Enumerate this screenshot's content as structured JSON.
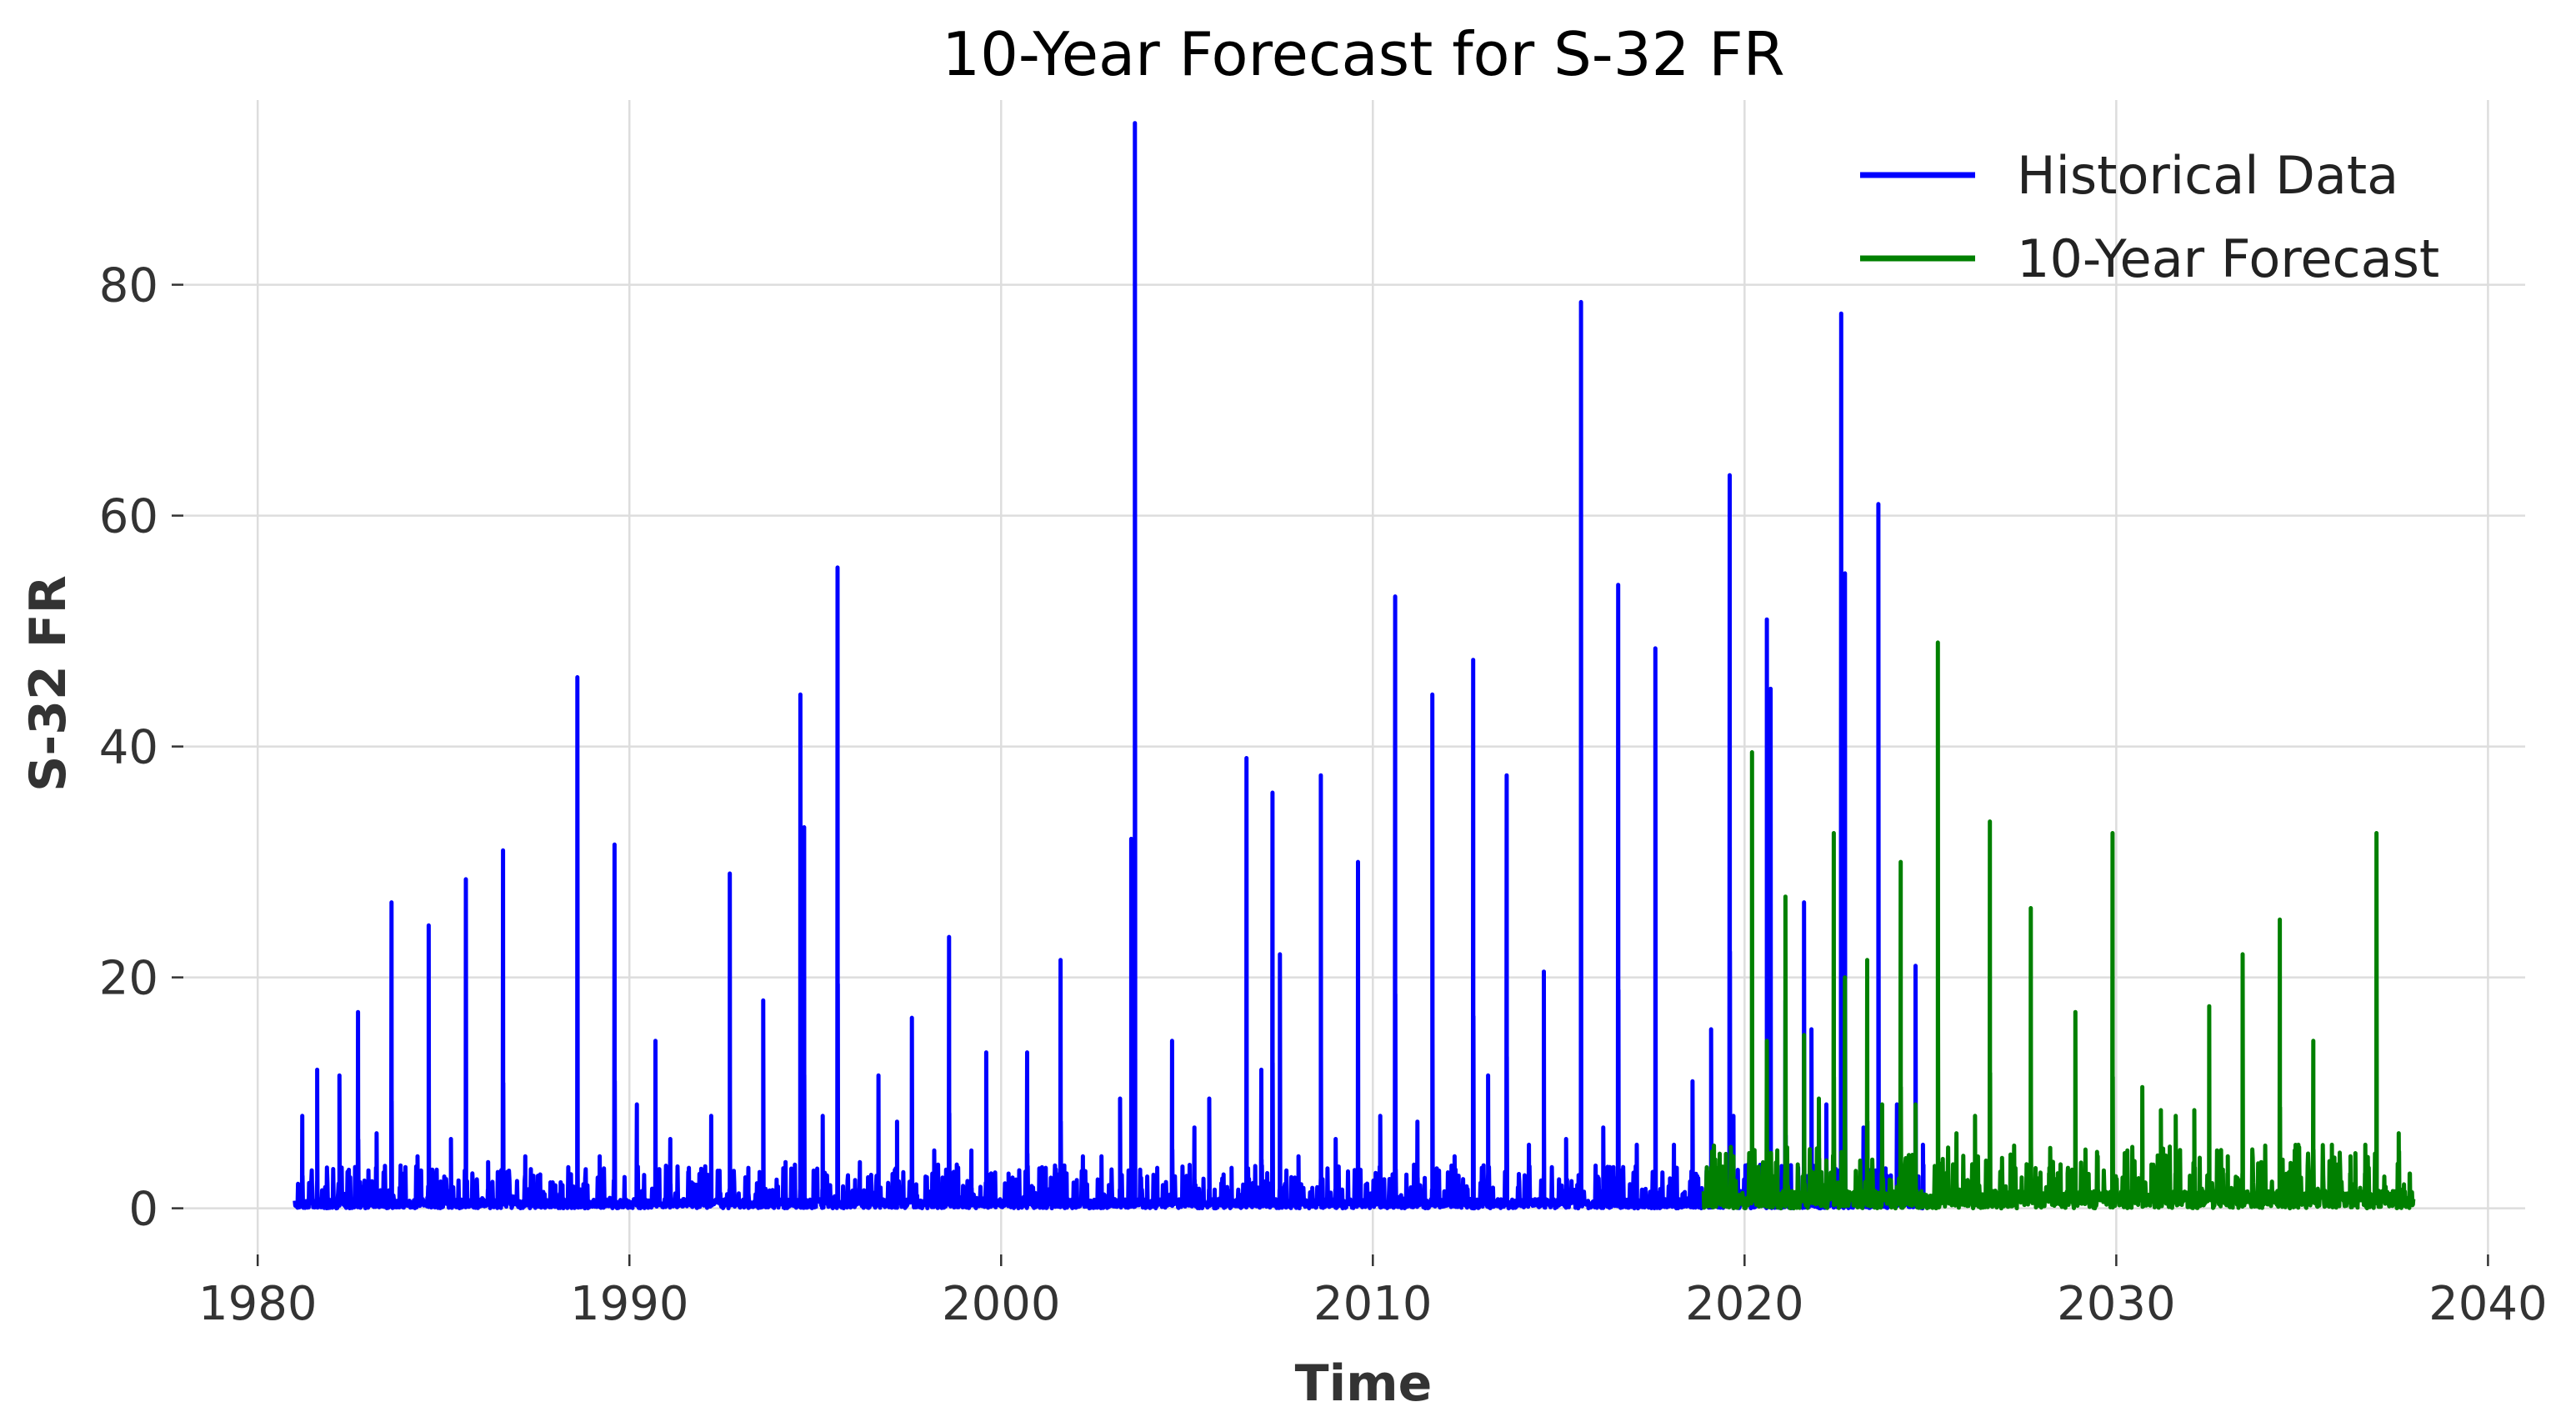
{
  "chart_data": {
    "type": "line",
    "title": "10-Year Forecast for S-32 FR",
    "xlabel": "Time",
    "ylabel": "S-32 FR",
    "xlim": [
      1978.0,
      2041.0
    ],
    "ylim": [
      -4,
      96
    ],
    "x_ticks": [
      1980,
      1990,
      2000,
      2010,
      2020,
      2030,
      2040
    ],
    "x_tick_labels": [
      "1980",
      "1990",
      "2000",
      "2010",
      "2020",
      "2030",
      "2040"
    ],
    "y_ticks": [
      0,
      20,
      40,
      60,
      80
    ],
    "y_tick_labels": [
      "0",
      "20",
      "40",
      "60",
      "80"
    ],
    "grid": true,
    "legend_position": "top-right",
    "series": [
      {
        "name": "Historical Data",
        "color": "#0000ff",
        "x_range": [
          1981.0,
          2024.9
        ],
        "baseline": 0.8,
        "peaks": [
          [
            1981.2,
            8
          ],
          [
            1981.6,
            12
          ],
          [
            1982.2,
            11.5
          ],
          [
            1982.7,
            17
          ],
          [
            1983.2,
            6.5
          ],
          [
            1983.6,
            26.5
          ],
          [
            1984.3,
            4.5
          ],
          [
            1984.6,
            24.5
          ],
          [
            1985.2,
            6
          ],
          [
            1985.6,
            28.5
          ],
          [
            1986.2,
            4
          ],
          [
            1986.6,
            31
          ],
          [
            1987.2,
            4.5
          ],
          [
            1987.6,
            2.5
          ],
          [
            1988.2,
            2
          ],
          [
            1988.6,
            46
          ],
          [
            1989.2,
            4.5
          ],
          [
            1989.6,
            31.5
          ],
          [
            1990.2,
            9
          ],
          [
            1990.7,
            14.5
          ],
          [
            1991.1,
            6
          ],
          [
            1991.6,
            3.5
          ],
          [
            1992.2,
            8
          ],
          [
            1992.7,
            29
          ],
          [
            1993.2,
            3.5
          ],
          [
            1993.6,
            18
          ],
          [
            1994.2,
            4
          ],
          [
            1994.6,
            44.5
          ],
          [
            1994.7,
            33
          ],
          [
            1995.2,
            8
          ],
          [
            1995.6,
            55.5
          ],
          [
            1996.2,
            4
          ],
          [
            1996.7,
            11.5
          ],
          [
            1997.2,
            7.5
          ],
          [
            1997.6,
            16.5
          ],
          [
            1998.2,
            5
          ],
          [
            1998.6,
            23.5
          ],
          [
            1999.2,
            5
          ],
          [
            1999.6,
            13.5
          ],
          [
            2000.2,
            3
          ],
          [
            2000.7,
            13.5
          ],
          [
            2001.2,
            3.5
          ],
          [
            2001.6,
            21.5
          ],
          [
            2002.2,
            4.5
          ],
          [
            2002.7,
            4.5
          ],
          [
            2003.2,
            9.5
          ],
          [
            2003.5,
            32
          ],
          [
            2003.6,
            94
          ],
          [
            2004.2,
            3.5
          ],
          [
            2004.6,
            14.5
          ],
          [
            2005.2,
            7
          ],
          [
            2005.6,
            9.5
          ],
          [
            2006.2,
            3.5
          ],
          [
            2006.6,
            39
          ],
          [
            2007.0,
            12
          ],
          [
            2007.3,
            36
          ],
          [
            2007.5,
            22
          ],
          [
            2008.0,
            4.5
          ],
          [
            2008.6,
            37.5
          ],
          [
            2009.0,
            6
          ],
          [
            2009.6,
            30
          ],
          [
            2010.2,
            8
          ],
          [
            2010.6,
            53
          ],
          [
            2011.2,
            7.5
          ],
          [
            2011.6,
            44.5
          ],
          [
            2012.2,
            4.5
          ],
          [
            2012.7,
            47.5
          ],
          [
            2013.1,
            11.5
          ],
          [
            2013.6,
            37.5
          ],
          [
            2014.2,
            5.5
          ],
          [
            2014.6,
            20.5
          ],
          [
            2015.2,
            6
          ],
          [
            2015.6,
            78.5
          ],
          [
            2016.2,
            7
          ],
          [
            2016.6,
            54
          ],
          [
            2017.1,
            5.5
          ],
          [
            2017.6,
            48.5
          ],
          [
            2018.1,
            5.5
          ],
          [
            2018.6,
            11
          ],
          [
            2019.1,
            15.5
          ],
          [
            2019.6,
            63.5
          ],
          [
            2019.7,
            8
          ],
          [
            2020.6,
            51
          ],
          [
            2020.7,
            45
          ],
          [
            2021.1,
            18
          ],
          [
            2021.6,
            26.5
          ],
          [
            2021.8,
            15.5
          ],
          [
            2022.2,
            9
          ],
          [
            2022.6,
            77.5
          ],
          [
            2022.7,
            55
          ],
          [
            2023.2,
            7
          ],
          [
            2023.6,
            61
          ],
          [
            2024.1,
            9
          ],
          [
            2024.6,
            21
          ],
          [
            2024.8,
            5.5
          ]
        ]
      },
      {
        "name": "10-Year Forecast",
        "color": "#008000",
        "x_range": [
          2018.9,
          2038.0
        ],
        "baseline": 1.5,
        "peaks": [
          [
            2019.3,
            3.5
          ],
          [
            2019.7,
            4.5
          ],
          [
            2020.2,
            39.5
          ],
          [
            2020.6,
            14.5
          ],
          [
            2021.1,
            27
          ],
          [
            2021.6,
            15
          ],
          [
            2022.0,
            9.5
          ],
          [
            2022.4,
            32.5
          ],
          [
            2022.7,
            20
          ],
          [
            2023.3,
            21.5
          ],
          [
            2023.7,
            9
          ],
          [
            2024.2,
            30
          ],
          [
            2024.6,
            9
          ],
          [
            2025.2,
            49
          ],
          [
            2025.7,
            6.5
          ],
          [
            2026.2,
            8
          ],
          [
            2026.6,
            33.5
          ],
          [
            2027.2,
            4.5
          ],
          [
            2027.7,
            26
          ],
          [
            2028.2,
            3.5
          ],
          [
            2028.7,
            3.5
          ],
          [
            2028.9,
            17
          ],
          [
            2029.5,
            4.5
          ],
          [
            2029.9,
            32.5
          ],
          [
            2030.3,
            5
          ],
          [
            2030.7,
            10.5
          ],
          [
            2031.2,
            8.5
          ],
          [
            2031.6,
            8
          ],
          [
            2032.1,
            8.5
          ],
          [
            2032.5,
            17.5
          ],
          [
            2033.0,
            4.5
          ],
          [
            2033.4,
            22
          ],
          [
            2033.9,
            4
          ],
          [
            2034.4,
            25
          ],
          [
            2034.9,
            5.5
          ],
          [
            2035.3,
            14.5
          ],
          [
            2035.8,
            5.5
          ],
          [
            2036.3,
            4.5
          ],
          [
            2036.7,
            5.5
          ],
          [
            2037.0,
            32.5
          ],
          [
            2037.6,
            6.5
          ],
          [
            2037.9,
            3
          ]
        ]
      }
    ]
  }
}
